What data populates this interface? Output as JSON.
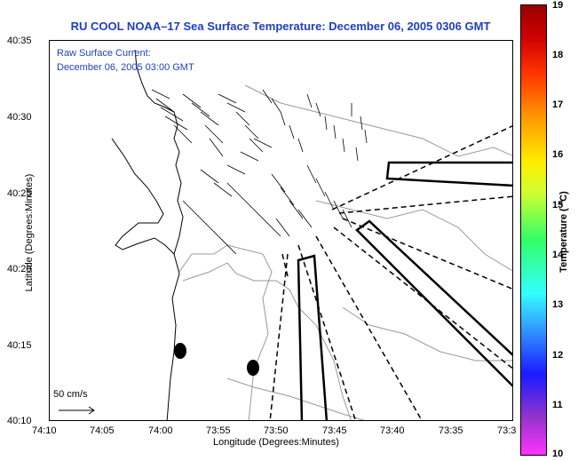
{
  "header": {
    "title": "RU COOL  NOAA–17  Sea Surface Temperature:  December 06, 2005 0306 GMT"
  },
  "overlay": {
    "raw_label": "Raw Surface Current:",
    "raw_date": "December 06, 2005 03:00 GMT"
  },
  "axes": {
    "ylabel": "Latitude (Degrees:Minutes)",
    "xlabel": "Longitude (Degrees:Minutes)",
    "yticks": [
      "40:35",
      "40:30",
      "40:25",
      "40:20",
      "40:15",
      "40:10"
    ],
    "xticks": [
      "74:10",
      "74:05",
      "74:00",
      "73:55",
      "73:50",
      "73:45",
      "73:40",
      "73:35",
      "73:3"
    ]
  },
  "scale": {
    "label": "50 cm/s"
  },
  "colorbar": {
    "label": "Temperature ( °C)",
    "ticks": [
      "19",
      "18",
      "17",
      "16",
      "15",
      "14",
      "13",
      "12",
      "11",
      "10"
    ],
    "colors": [
      "#990000",
      "#cc0000",
      "#ff3300",
      "#ff9900",
      "#ffee00",
      "#ccff33",
      "#33ff66",
      "#33ffff",
      "#3399ff",
      "#1a1aff",
      "#9933cc",
      "#ff33ff"
    ]
  }
}
